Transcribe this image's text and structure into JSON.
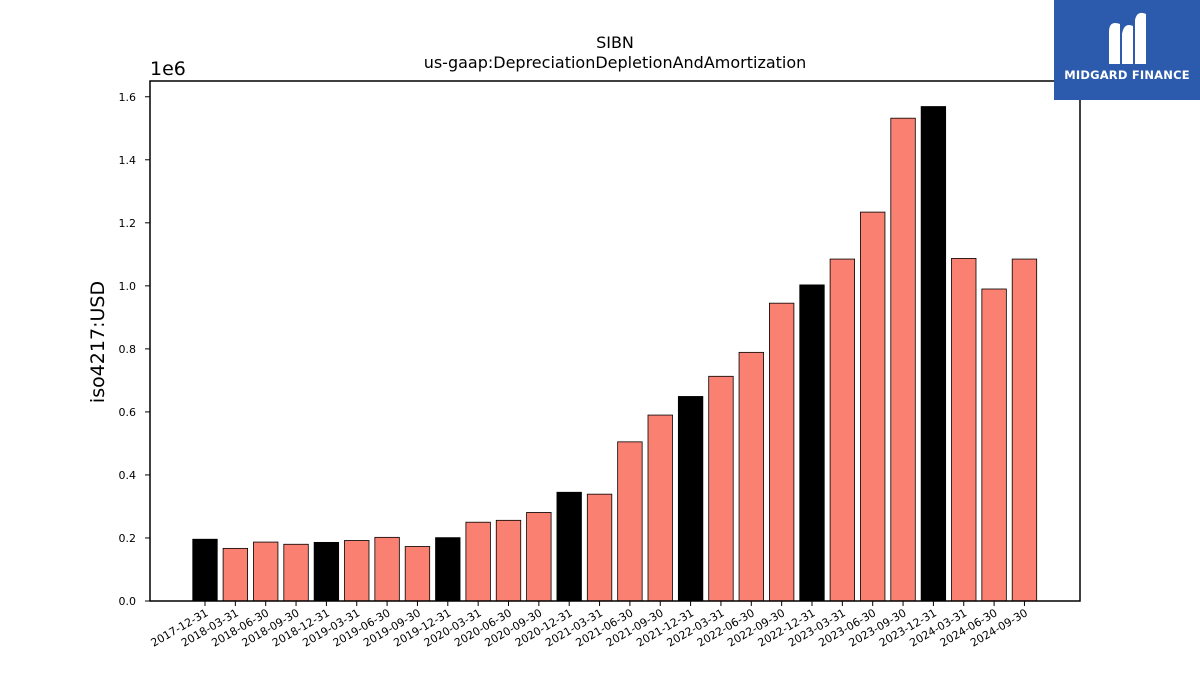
{
  "chart_data": {
    "type": "bar",
    "title": "SIBN",
    "subtitle": "us-gaap:DepreciationDepletionAndAmortization",
    "ylabel": "iso4217:USD",
    "scale_label": "1e6",
    "ylim": [
      0,
      1.65
    ],
    "yticks": [
      "0.0",
      "0.2",
      "0.4",
      "0.6",
      "0.8",
      "1.0",
      "1.2",
      "1.4",
      "1.6"
    ],
    "grid": false,
    "colors": {
      "annual": "#000000",
      "quarterly": "#fa8072"
    },
    "categories": [
      "2017-12-31",
      "2018-03-31",
      "2018-06-30",
      "2018-09-30",
      "2018-12-31",
      "2019-03-31",
      "2019-06-30",
      "2019-09-30",
      "2019-12-31",
      "2020-03-31",
      "2020-06-30",
      "2020-09-30",
      "2020-12-31",
      "2021-03-31",
      "2021-06-30",
      "2021-09-30",
      "2021-12-31",
      "2022-03-31",
      "2022-06-30",
      "2022-09-30",
      "2022-12-31",
      "2023-03-31",
      "2023-06-30",
      "2023-09-30",
      "2023-12-31",
      "2024-03-31",
      "2024-06-30",
      "2024-09-30"
    ],
    "values": [
      0.196,
      0.167,
      0.187,
      0.18,
      0.186,
      0.192,
      0.202,
      0.173,
      0.201,
      0.25,
      0.256,
      0.281,
      0.345,
      0.339,
      0.505,
      0.59,
      0.649,
      0.713,
      0.789,
      0.945,
      1.003,
      1.085,
      1.234,
      1.532,
      1.569,
      1.087,
      0.99,
      1.085
    ],
    "annual": [
      true,
      false,
      false,
      false,
      true,
      false,
      false,
      false,
      true,
      false,
      false,
      false,
      true,
      false,
      false,
      false,
      true,
      false,
      false,
      false,
      true,
      false,
      false,
      false,
      true,
      false,
      false,
      false
    ]
  },
  "logo": {
    "text": "MIDGARD FINANCE"
  }
}
